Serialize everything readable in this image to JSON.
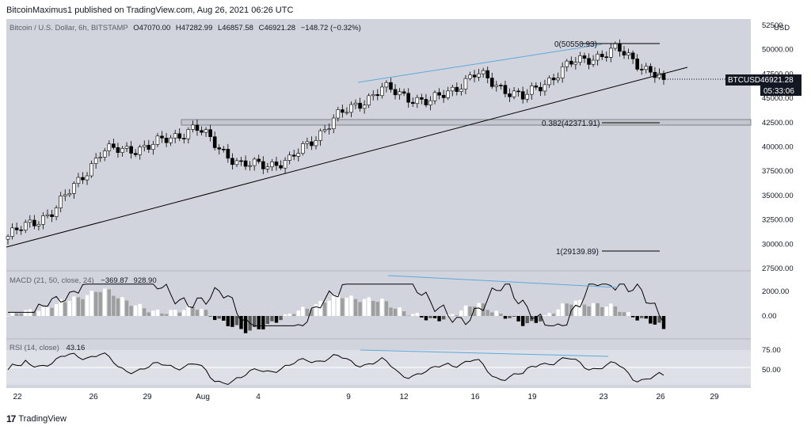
{
  "header": {
    "publisher_line": "BitcoinMaximus1 published on TradingView.com, Aug 26, 2021 06:26 UTC"
  },
  "footer": {
    "brand": "TradingView"
  },
  "symbol_info": {
    "name": "Bitcoin / U.S. Dollar, 6h, BITSTAMP",
    "o": "O47070.00",
    "h": "H47282.99",
    "l": "L46857.58",
    "c": "C46921.28",
    "change": "−148.72 (−0.32%)"
  },
  "price_badge": {
    "symbol": "BTCUSD",
    "price": "46921.28",
    "countdown": "05:33:06"
  },
  "currency": "USD",
  "fib_labels": {
    "top": "0(50550.93)",
    "mid": "0.382(42371.91)",
    "bottom": "1(29139.89)"
  },
  "macd": {
    "label": "MACD (21, 50, close, 24)",
    "v1": "−369.87",
    "v2": "928.90"
  },
  "rsi": {
    "label": "RSI (14, close)",
    "value": "43.16"
  },
  "colors": {
    "up": "#ffffff",
    "down": "#000000",
    "trendline": "#000000",
    "divergence": "#5fa8d9",
    "grid_bg": "#d1d4dc"
  },
  "chart_data": [
    {
      "type": "candlestick",
      "title": "Bitcoin / U.S. Dollar, 6h, BITSTAMP",
      "ylim": [
        27500,
        52500
      ],
      "y_ticks": [
        27500,
        30000,
        32500,
        35000,
        37500,
        40000,
        42500,
        45000,
        47500,
        50000,
        52500
      ],
      "y_tick_labels": [
        "27500.00",
        "30000.00",
        "32500.00",
        "35000.00",
        "37500.00",
        "40000.00",
        "42500.00",
        "45000.00",
        "47500.00",
        "50000.00",
        "52500"
      ],
      "x_labels": [
        "22",
        "26",
        "29",
        "Aug",
        "4",
        "9",
        "12",
        "16",
        "19",
        "23",
        "26",
        "29"
      ],
      "key_points": [
        {
          "date": "Jul 21",
          "close": 30800
        },
        {
          "date": "Jul 24",
          "close": 33500
        },
        {
          "date": "Jul 26",
          "close": 39500
        },
        {
          "date": "Jul 28",
          "close": 40000
        },
        {
          "date": "Jul 31",
          "close": 42000
        },
        {
          "date": "Aug 3",
          "close": 38000
        },
        {
          "date": "Aug 5",
          "close": 38500
        },
        {
          "date": "Aug 7",
          "close": 43000
        },
        {
          "date": "Aug 9",
          "close": 46000
        },
        {
          "date": "Aug 12",
          "close": 44500
        },
        {
          "date": "Aug 14",
          "close": 47500
        },
        {
          "date": "Aug 18",
          "close": 45000
        },
        {
          "date": "Aug 21",
          "close": 48500
        },
        {
          "date": "Aug 23",
          "close": 50000
        },
        {
          "date": "Aug 26",
          "close": 46921.28
        }
      ],
      "fibonacci": [
        {
          "level": "0",
          "price": 50550.93
        },
        {
          "level": "0.382",
          "price": 42371.91
        },
        {
          "level": "1",
          "price": 29139.89
        }
      ],
      "support_zone": [
        42000,
        42800
      ],
      "last_price": 46921.28
    },
    {
      "type": "histogram+line",
      "title": "MACD (21, 50, close, 24)",
      "y_ticks": [
        0,
        2000
      ],
      "y_tick_labels": [
        "0.00",
        "2000.00"
      ],
      "macd_value": -369.87,
      "signal_value": 928.9
    },
    {
      "type": "line",
      "title": "RSI (14, close)",
      "y_ticks": [
        50,
        75
      ],
      "y_tick_labels": [
        "50.00",
        "75.00"
      ],
      "last_value": 43.16
    }
  ]
}
